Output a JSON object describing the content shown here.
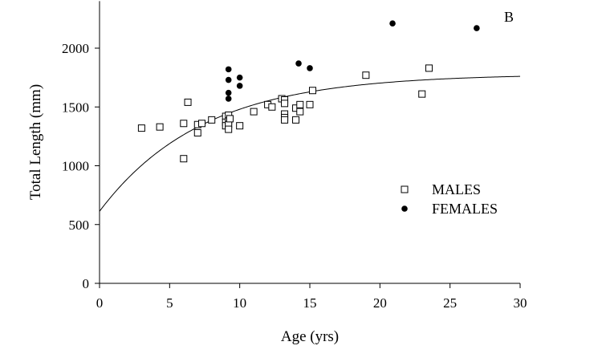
{
  "chart_data": {
    "type": "scatter",
    "panel_label": "B",
    "xlabel": "Age (yrs)",
    "ylabel": "Total Length (mm)",
    "xlim": [
      0,
      30
    ],
    "ylim": [
      0,
      2400
    ],
    "x_ticks": [
      0,
      5,
      10,
      15,
      20,
      25,
      30
    ],
    "y_ticks": [
      0,
      500,
      1000,
      1500,
      2000
    ],
    "grid": false,
    "legend_position": "right-middle",
    "series": [
      {
        "name": "MALES",
        "marker": "open-square",
        "points": [
          [
            3,
            1320
          ],
          [
            4.3,
            1330
          ],
          [
            6,
            1360
          ],
          [
            6,
            1060
          ],
          [
            6.3,
            1540
          ],
          [
            7,
            1350
          ],
          [
            7,
            1280
          ],
          [
            7.3,
            1360
          ],
          [
            8,
            1390
          ],
          [
            9,
            1420
          ],
          [
            9,
            1370
          ],
          [
            9,
            1340
          ],
          [
            9.2,
            1430
          ],
          [
            9.2,
            1380
          ],
          [
            9.2,
            1350
          ],
          [
            9.2,
            1310
          ],
          [
            9.3,
            1400
          ],
          [
            10,
            1340
          ],
          [
            11,
            1460
          ],
          [
            12,
            1520
          ],
          [
            12.3,
            1500
          ],
          [
            13,
            1570
          ],
          [
            13.2,
            1560
          ],
          [
            13.2,
            1530
          ],
          [
            13.2,
            1440
          ],
          [
            13.2,
            1410
          ],
          [
            13.2,
            1390
          ],
          [
            14,
            1490
          ],
          [
            14,
            1390
          ],
          [
            14.3,
            1520
          ],
          [
            14.3,
            1460
          ],
          [
            15,
            1520
          ],
          [
            15.2,
            1640
          ],
          [
            19,
            1770
          ],
          [
            23,
            1610
          ],
          [
            23.5,
            1830
          ]
        ]
      },
      {
        "name": "FEMALES",
        "marker": "filled-circle",
        "points": [
          [
            9.2,
            1820
          ],
          [
            9.2,
            1730
          ],
          [
            9.2,
            1620
          ],
          [
            9.2,
            1570
          ],
          [
            10,
            1750
          ],
          [
            10,
            1680
          ],
          [
            14.2,
            1870
          ],
          [
            15,
            1830
          ],
          [
            20.9,
            2210
          ],
          [
            26.9,
            2170
          ]
        ]
      }
    ],
    "fit_curve": {
      "type": "von-bertalanffy",
      "L_inf": 1780,
      "k": 0.136,
      "t0": -3.1
    }
  }
}
